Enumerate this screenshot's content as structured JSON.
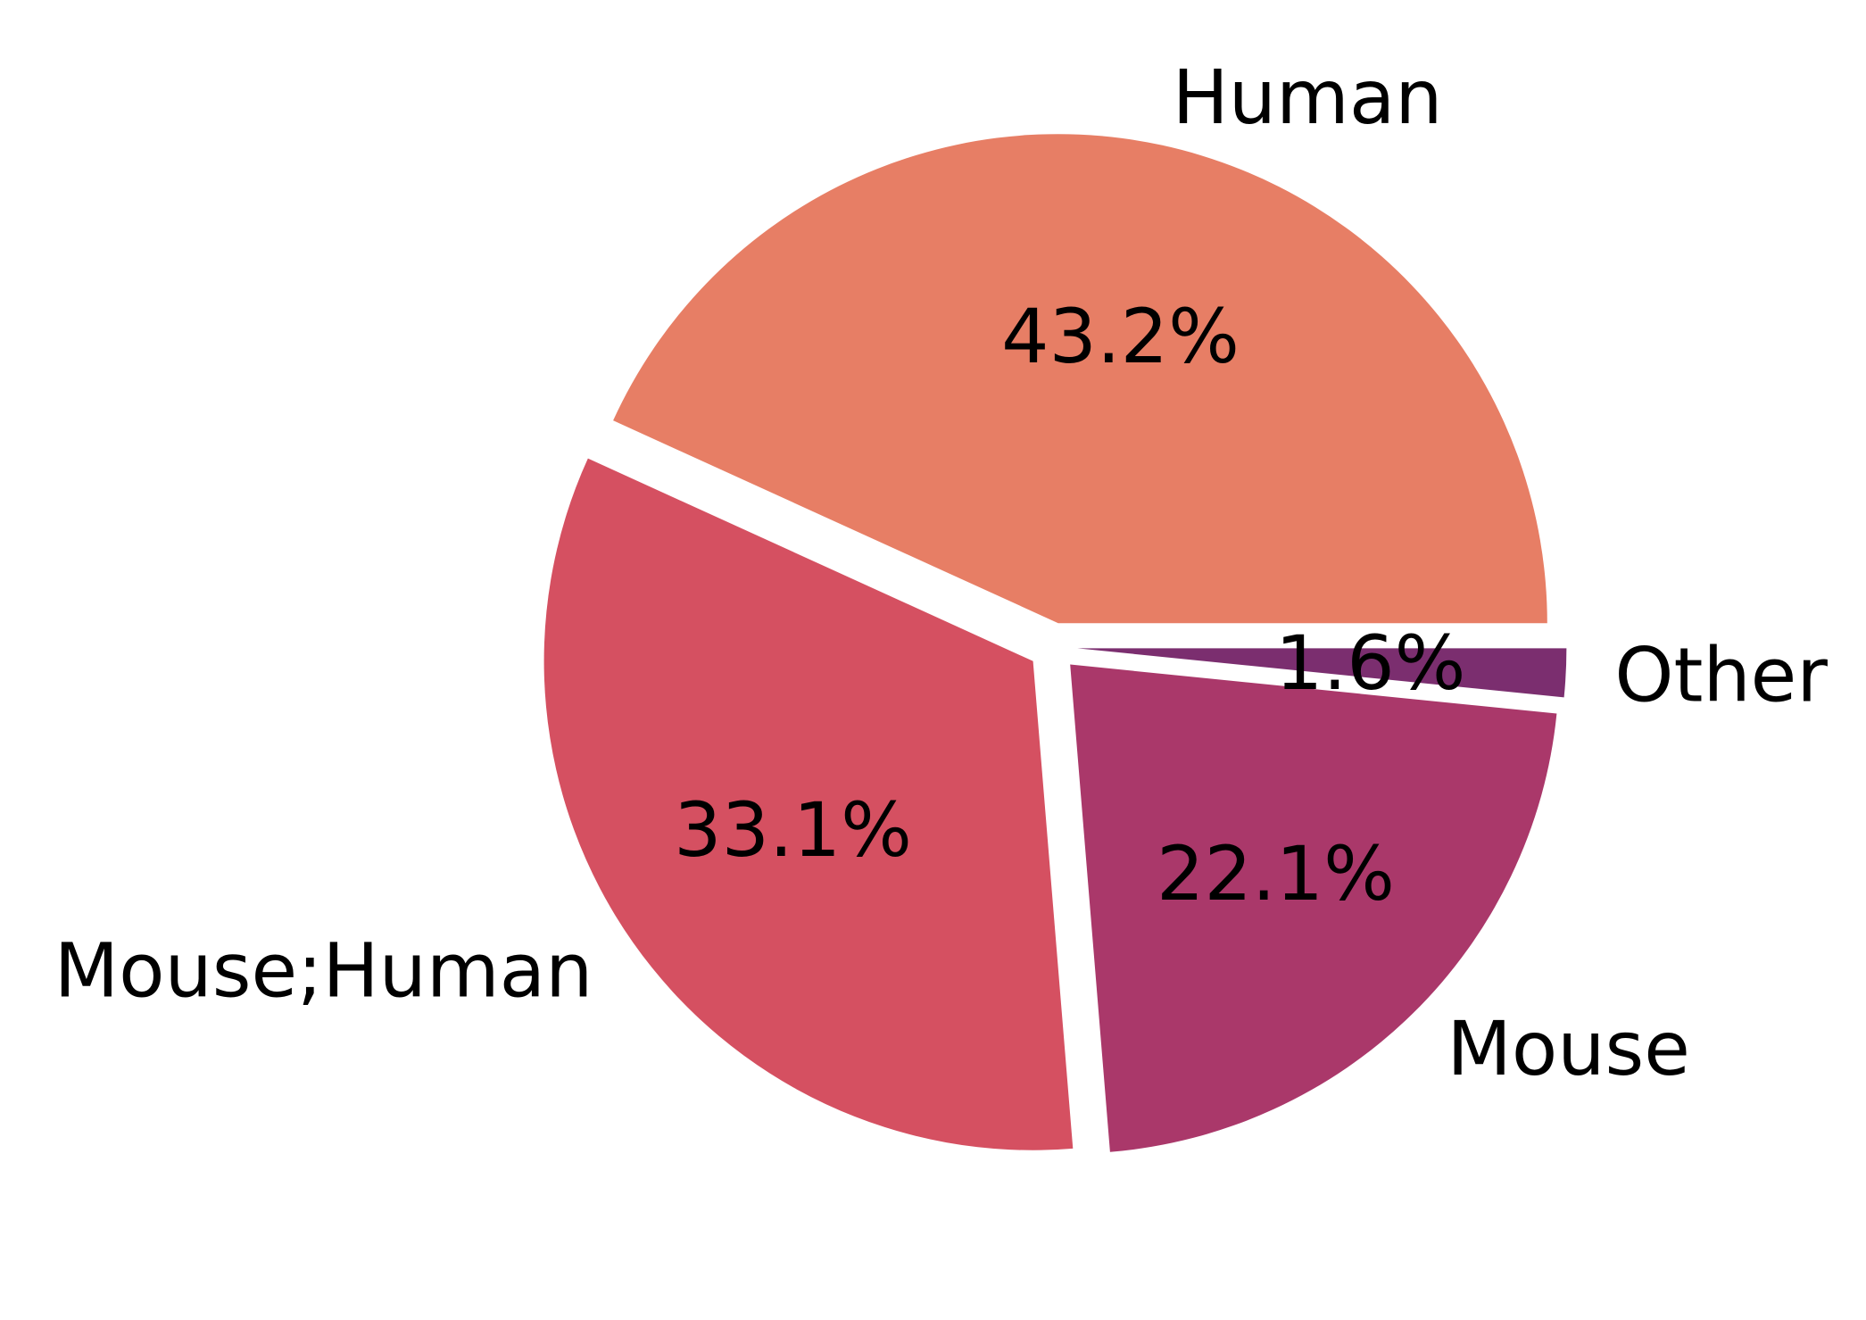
{
  "chart_data": {
    "type": "pie",
    "start_angle_deg": 0,
    "direction": "counterclockwise",
    "exploded": true,
    "slices": [
      {
        "label": "Human",
        "value": 43.2,
        "pct_label": "43.2%",
        "color": "#e77e65"
      },
      {
        "label": "Mouse;Human",
        "value": 33.1,
        "pct_label": "33.1%",
        "color": "#d55061"
      },
      {
        "label": "Mouse",
        "value": 22.1,
        "pct_label": "22.1%",
        "color": "#aa386a"
      },
      {
        "label": "Other",
        "value": 1.6,
        "pct_label": "1.6%",
        "color": "#7b2e6f"
      }
    ]
  }
}
